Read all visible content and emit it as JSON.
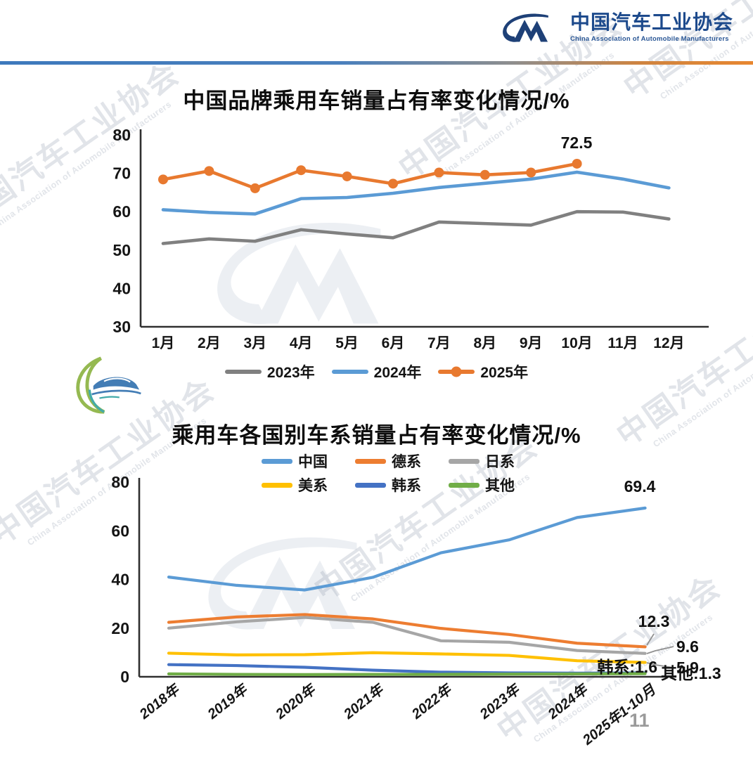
{
  "header": {
    "org_cn": "中国汽车工业协会",
    "org_en": "China Association of Automobile Manufacturers"
  },
  "watermark": {
    "text_cn": "中国汽车工业协会",
    "text_en": "China Association of Automobile Manufacturers"
  },
  "page_number": "11",
  "chart_data": [
    {
      "type": "line",
      "title": "中国品牌乘用车销量占有率变化情况/%",
      "categories": [
        "1月",
        "2月",
        "3月",
        "4月",
        "5月",
        "6月",
        "7月",
        "8月",
        "9月",
        "10月",
        "11月",
        "12月"
      ],
      "ylim": [
        30,
        80
      ],
      "yticks": [
        30,
        40,
        50,
        60,
        70,
        80
      ],
      "grid": false,
      "legend_position": "bottom",
      "series": [
        {
          "name": "2023年",
          "color": "#808080",
          "marker": false,
          "values": [
            51.7,
            52.9,
            52.3,
            55.3,
            54.2,
            53.2,
            57.3,
            56.9,
            56.5,
            60.0,
            59.9,
            58.1
          ]
        },
        {
          "name": "2024年",
          "color": "#5b9bd5",
          "marker": false,
          "values": [
            60.5,
            59.8,
            59.4,
            63.4,
            63.7,
            64.8,
            66.3,
            67.4,
            68.5,
            70.3,
            68.5,
            66.2
          ]
        },
        {
          "name": "2025年",
          "color": "#e8792f",
          "marker": true,
          "values": [
            68.4,
            70.6,
            66.1,
            70.8,
            69.2,
            67.3,
            70.2,
            69.6,
            70.2,
            72.5
          ]
        }
      ],
      "annotation": {
        "text": "72.5",
        "series": "2025年",
        "category": "10月"
      }
    },
    {
      "type": "line",
      "title": "乘用车各国别车系销量占有率变化情况/%",
      "categories": [
        "2018年",
        "2019年",
        "2020年",
        "2021年",
        "2022年",
        "2023年",
        "2024年",
        "2025年1-10月"
      ],
      "ylim": [
        0,
        80
      ],
      "yticks": [
        0,
        20,
        40,
        60,
        80
      ],
      "grid": false,
      "legend_position": "top",
      "series": [
        {
          "name": "中国",
          "color": "#5b9bd5",
          "marker": false,
          "values": [
            41.0,
            37.6,
            35.7,
            40.9,
            51.0,
            56.3,
            65.5,
            69.4
          ]
        },
        {
          "name": "德系",
          "color": "#ed7d31",
          "marker": false,
          "values": [
            22.4,
            24.6,
            25.6,
            23.8,
            19.9,
            17.4,
            13.8,
            12.3
          ]
        },
        {
          "name": "日系",
          "color": "#a6a6a6",
          "marker": false,
          "values": [
            20.0,
            22.6,
            24.4,
            22.4,
            14.8,
            14.2,
            10.8,
            9.6
          ]
        },
        {
          "name": "美系",
          "color": "#ffc000",
          "marker": false,
          "values": [
            9.7,
            9.0,
            9.1,
            9.9,
            9.4,
            8.8,
            6.6,
            5.9
          ]
        },
        {
          "name": "韩系",
          "color": "#4472c4",
          "marker": false,
          "values": [
            5.0,
            4.6,
            3.9,
            2.7,
            1.9,
            1.6,
            1.5,
            1.6
          ]
        },
        {
          "name": "其他",
          "color": "#70ad47",
          "marker": false,
          "values": [
            1.2,
            1.0,
            0.9,
            1.0,
            1.0,
            1.1,
            1.2,
            1.3
          ]
        }
      ],
      "end_labels": [
        {
          "text": "69.4",
          "series": "中国"
        },
        {
          "text": "12.3",
          "series": "德系"
        },
        {
          "text": "9.6",
          "series": "日系"
        },
        {
          "text": "5.9",
          "series": "美系"
        },
        {
          "text": "韩系:1.6",
          "series": "韩系"
        },
        {
          "text": "其他:1.3",
          "series": "其他"
        }
      ]
    }
  ]
}
